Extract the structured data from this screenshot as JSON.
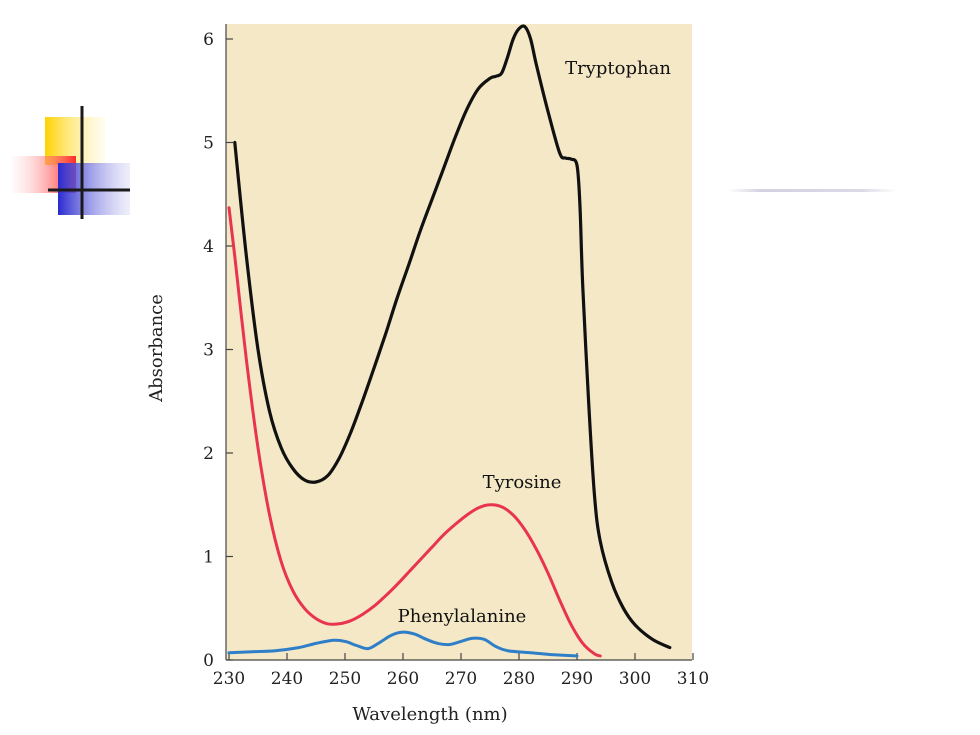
{
  "colors": {
    "plot_background": "#f4e8c6",
    "tryptophan": "#111111",
    "tyrosine": "#e8344f",
    "phenylalanine": "#2f7fc8",
    "deco_yellow": "#ffd200",
    "deco_red": "#ff3a3a",
    "deco_blue": "#2a2ad0"
  },
  "decoration": {
    "icon": "crosshair-squares-icon"
  },
  "chart_data": {
    "type": "line",
    "title": "",
    "xlabel": "Wavelength (nm)",
    "ylabel": "Absorbance",
    "xlim": [
      230,
      310
    ],
    "ylim": [
      0,
      6.2
    ],
    "x_ticks": [
      230,
      240,
      250,
      260,
      270,
      280,
      290,
      300,
      310
    ],
    "y_ticks": [
      0,
      1,
      2,
      3,
      4,
      5,
      6
    ],
    "grid": false,
    "legend": "none (series labelled directly on the curves)",
    "series": [
      {
        "name": "Tryptophan",
        "color": "#111111",
        "points": [
          [
            231,
            5.0
          ],
          [
            233,
            3.9
          ],
          [
            235,
            3.0
          ],
          [
            237,
            2.4
          ],
          [
            239,
            2.05
          ],
          [
            241,
            1.85
          ],
          [
            243,
            1.74
          ],
          [
            245,
            1.72
          ],
          [
            247,
            1.78
          ],
          [
            249,
            1.95
          ],
          [
            251,
            2.2
          ],
          [
            253,
            2.5
          ],
          [
            255,
            2.82
          ],
          [
            257,
            3.15
          ],
          [
            259,
            3.5
          ],
          [
            261,
            3.82
          ],
          [
            263,
            4.15
          ],
          [
            265,
            4.45
          ],
          [
            267,
            4.75
          ],
          [
            269,
            5.05
          ],
          [
            271,
            5.32
          ],
          [
            273,
            5.52
          ],
          [
            275,
            5.62
          ],
          [
            276,
            5.64
          ],
          [
            277,
            5.67
          ],
          [
            278,
            5.82
          ],
          [
            279,
            6.0
          ],
          [
            280,
            6.1
          ],
          [
            281,
            6.12
          ],
          [
            282,
            6.0
          ],
          [
            283,
            5.75
          ],
          [
            285,
            5.3
          ],
          [
            287,
            4.9
          ],
          [
            288,
            4.85
          ],
          [
            289,
            4.84
          ],
          [
            290,
            4.78
          ],
          [
            290.5,
            4.4
          ],
          [
            291,
            3.6
          ],
          [
            292,
            2.5
          ],
          [
            293,
            1.6
          ],
          [
            294,
            1.15
          ],
          [
            296,
            0.75
          ],
          [
            298,
            0.5
          ],
          [
            300,
            0.34
          ],
          [
            303,
            0.2
          ],
          [
            306,
            0.12
          ]
        ]
      },
      {
        "name": "Tyrosine",
        "color": "#e8344f",
        "points": [
          [
            230,
            4.37
          ],
          [
            231,
            3.9
          ],
          [
            233,
            2.9
          ],
          [
            235,
            2.05
          ],
          [
            237,
            1.4
          ],
          [
            239,
            0.95
          ],
          [
            241,
            0.67
          ],
          [
            243,
            0.5
          ],
          [
            245,
            0.4
          ],
          [
            247,
            0.35
          ],
          [
            249,
            0.35
          ],
          [
            251,
            0.38
          ],
          [
            253,
            0.44
          ],
          [
            255,
            0.52
          ],
          [
            257,
            0.62
          ],
          [
            259,
            0.73
          ],
          [
            261,
            0.85
          ],
          [
            263,
            0.97
          ],
          [
            265,
            1.09
          ],
          [
            267,
            1.21
          ],
          [
            269,
            1.31
          ],
          [
            271,
            1.4
          ],
          [
            273,
            1.47
          ],
          [
            275,
            1.5
          ],
          [
            277,
            1.48
          ],
          [
            279,
            1.4
          ],
          [
            281,
            1.26
          ],
          [
            283,
            1.07
          ],
          [
            285,
            0.84
          ],
          [
            287,
            0.58
          ],
          [
            289,
            0.34
          ],
          [
            291,
            0.16
          ],
          [
            293,
            0.06
          ],
          [
            294,
            0.04
          ]
        ]
      },
      {
        "name": "Phenylalanine",
        "color": "#2f7fc8",
        "points": [
          [
            230,
            0.07
          ],
          [
            234,
            0.08
          ],
          [
            238,
            0.09
          ],
          [
            242,
            0.12
          ],
          [
            245,
            0.16
          ],
          [
            248,
            0.19
          ],
          [
            250,
            0.18
          ],
          [
            252,
            0.14
          ],
          [
            254,
            0.11
          ],
          [
            256,
            0.17
          ],
          [
            258,
            0.24
          ],
          [
            260,
            0.27
          ],
          [
            262,
            0.25
          ],
          [
            264,
            0.2
          ],
          [
            266,
            0.16
          ],
          [
            268,
            0.15
          ],
          [
            270,
            0.18
          ],
          [
            272,
            0.21
          ],
          [
            274,
            0.2
          ],
          [
            276,
            0.13
          ],
          [
            278,
            0.09
          ],
          [
            282,
            0.07
          ],
          [
            286,
            0.05
          ],
          [
            290,
            0.04
          ]
        ]
      }
    ],
    "annotations": [
      {
        "text": "Tryptophan",
        "series": "Tryptophan"
      },
      {
        "text": "Tyrosine",
        "series": "Tyrosine"
      },
      {
        "text": "Phenylalanine",
        "series": "Phenylalanine"
      }
    ]
  }
}
